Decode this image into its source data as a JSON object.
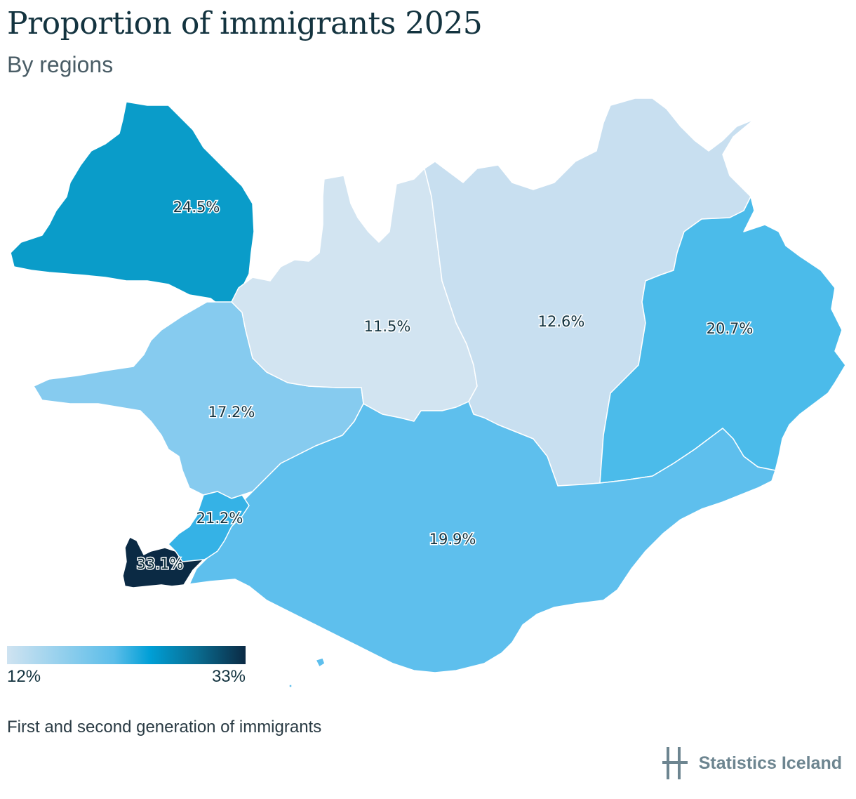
{
  "header": {
    "title": "Proportion of immigrants 2025",
    "subtitle": "By regions"
  },
  "map": {
    "regions": [
      {
        "id": "westfjords",
        "value": "24.5%",
        "color": "#0a9cc9"
      },
      {
        "id": "northwest",
        "value": "11.5%",
        "color": "#d2e4f1"
      },
      {
        "id": "northeast",
        "value": "12.6%",
        "color": "#c8dff0"
      },
      {
        "id": "east",
        "value": "20.7%",
        "color": "#4bbbea"
      },
      {
        "id": "west",
        "value": "17.2%",
        "color": "#86cbef"
      },
      {
        "id": "south",
        "value": "19.9%",
        "color": "#5ebfed"
      },
      {
        "id": "capital",
        "value": "21.2%",
        "color": "#35b2e6"
      },
      {
        "id": "southern-peninsula",
        "value": "33.1%",
        "color": "#0b2a44"
      }
    ]
  },
  "legend": {
    "min_label": "12%",
    "max_label": "33%",
    "colors": [
      "#cfe3f1",
      "#5bbde9",
      "#009fd6",
      "#0a6b8f",
      "#0b2a44"
    ]
  },
  "footer": {
    "note": "First and second generation of immigrants",
    "brand": "Statistics Iceland",
    "brand_color": "#6d8590"
  }
}
